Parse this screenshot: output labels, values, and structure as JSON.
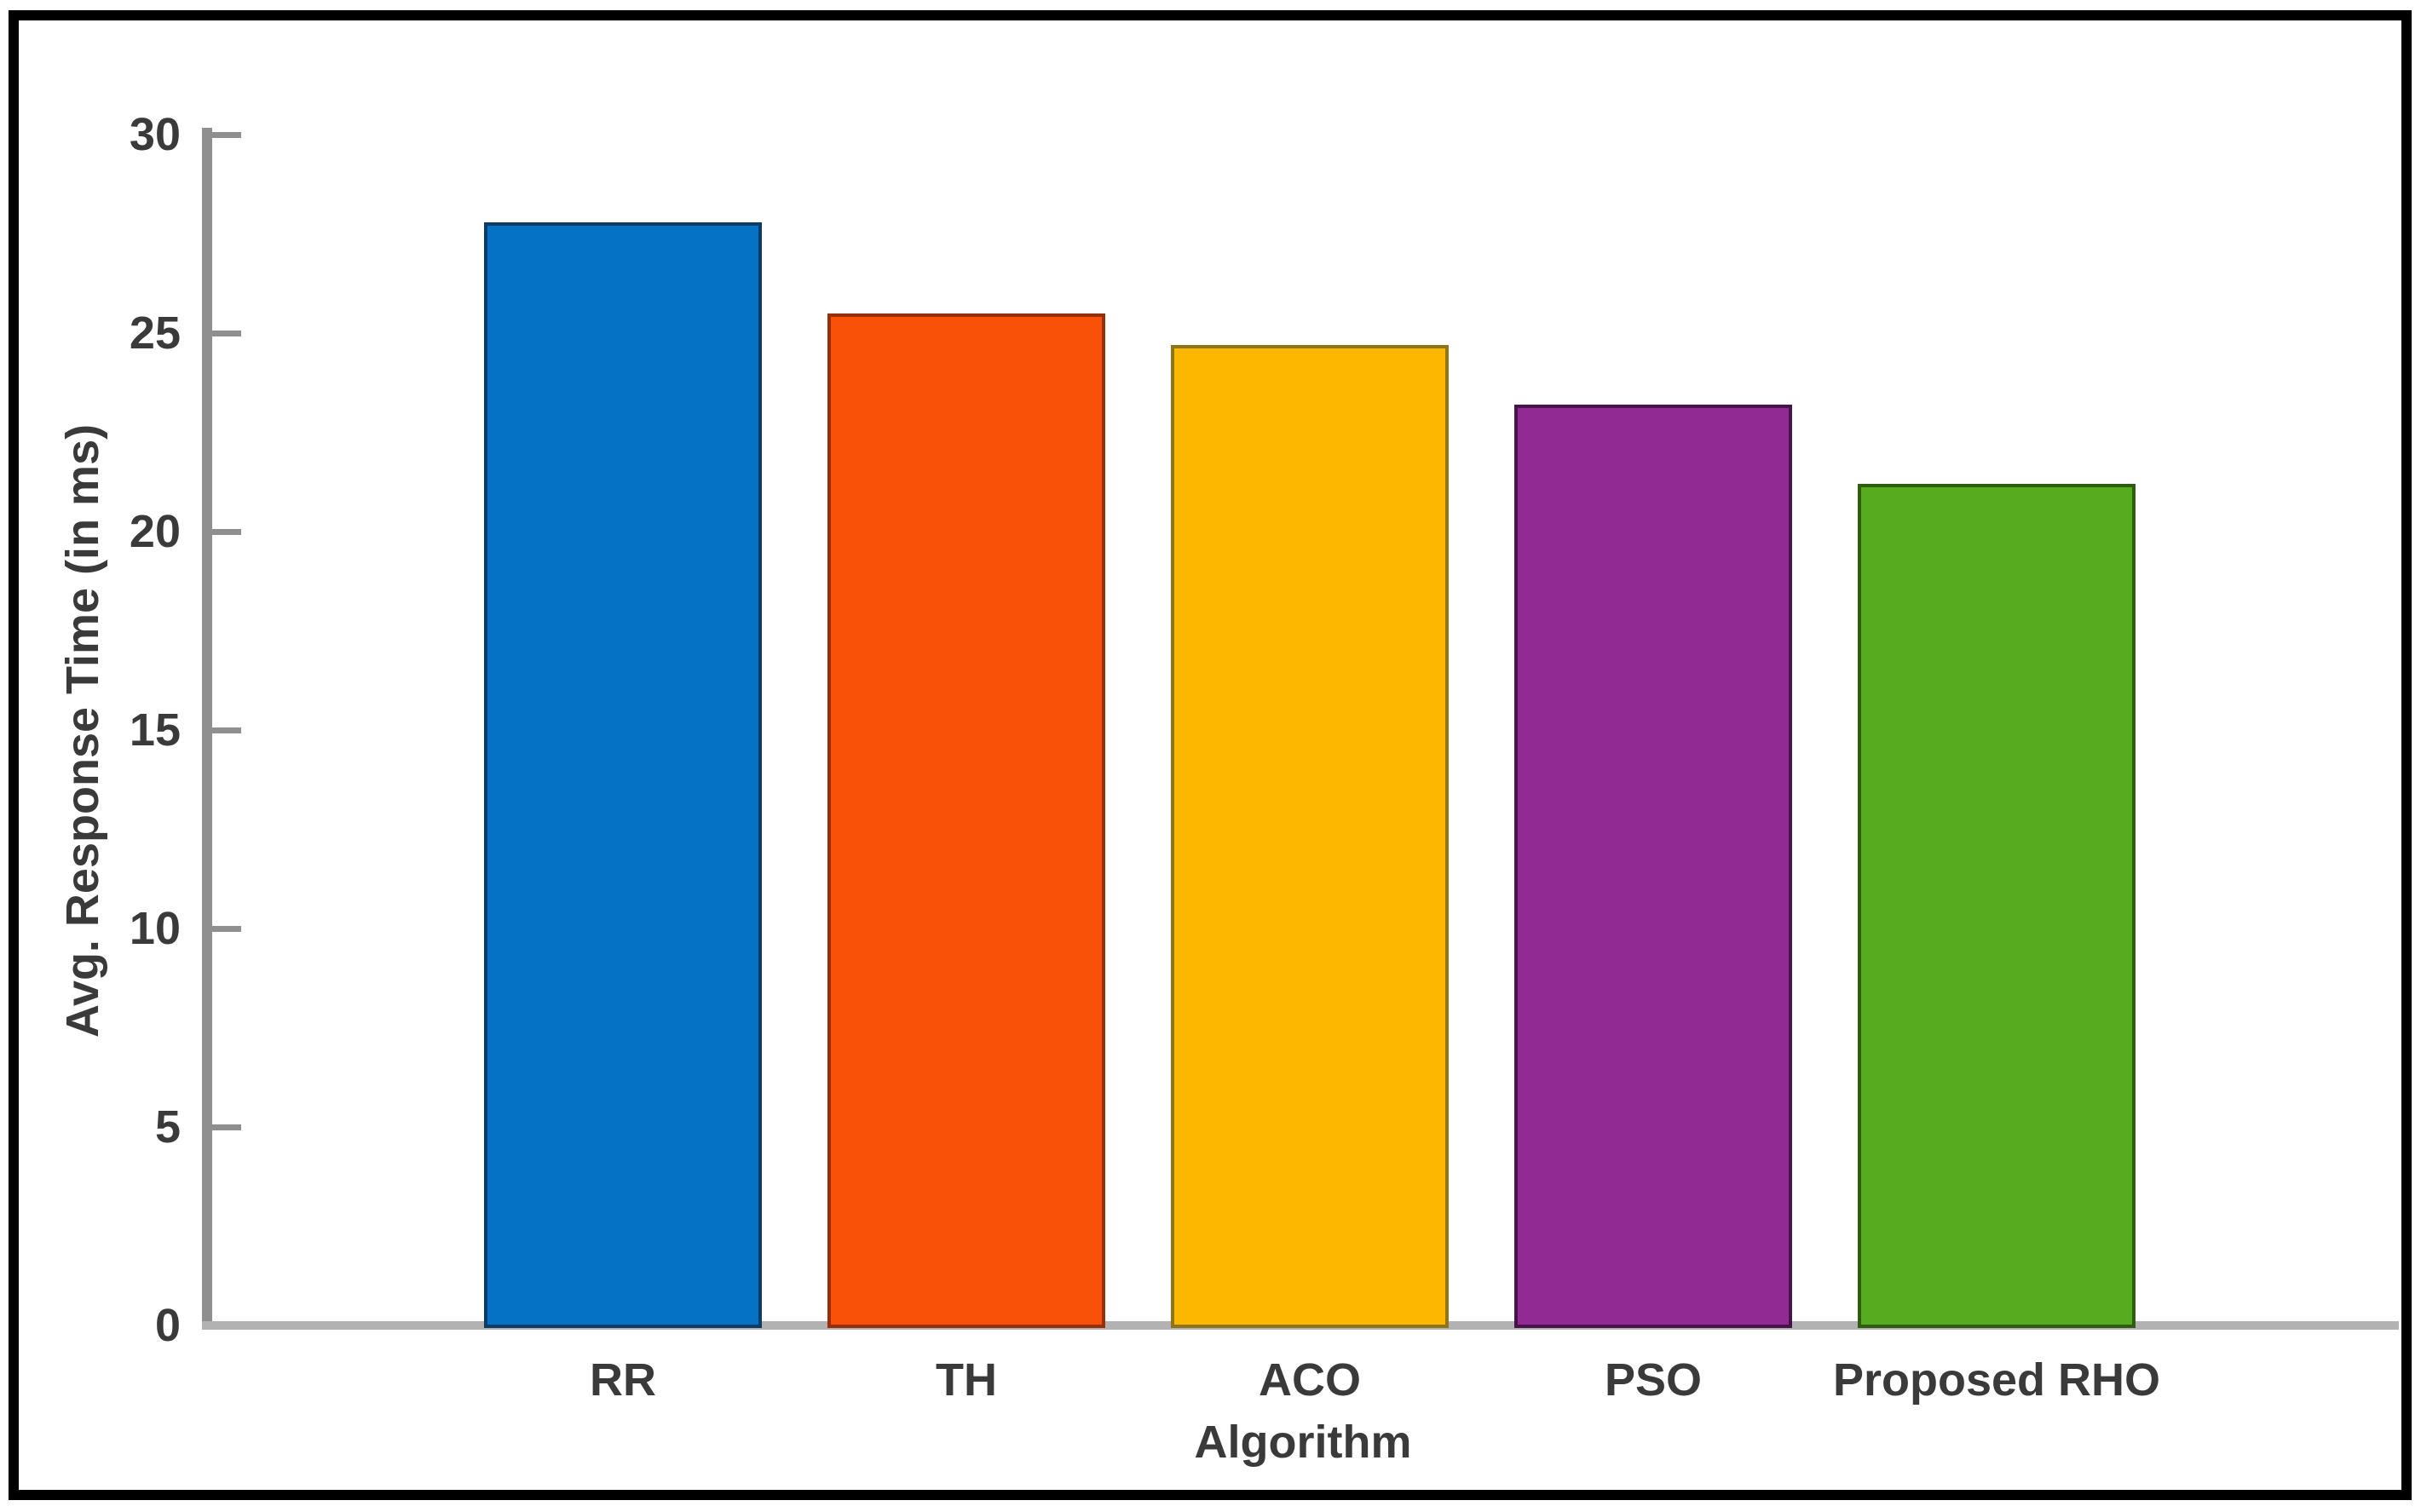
{
  "figure": {
    "background_color": "#ffffff",
    "frame_color": "#000000"
  },
  "chart_data": {
    "type": "bar",
    "title": "",
    "xlabel": "Algorithm",
    "ylabel": "Avg. Response Time (in ms)",
    "categories": [
      "RR",
      "TH",
      "ACO",
      "PSO",
      "Proposed RHO"
    ],
    "values": [
      27.8,
      25.5,
      24.7,
      23.2,
      21.2
    ],
    "bar_colors": [
      "#0572C6",
      "#F95108",
      "#FEB701",
      "#912A92",
      "#55AC1E"
    ],
    "bar_edge_colors": [
      "#0A3C66",
      "#97300A",
      "#8F7519",
      "#471449",
      "#2F5C0F"
    ],
    "ylim": [
      0,
      30
    ],
    "yticks": [
      0,
      5,
      10,
      15,
      20,
      25,
      30
    ],
    "grid": false,
    "legend": null,
    "axis_color": "#8f8f8f",
    "baseline_color": "#b2b2b2",
    "tick_label_color": "#3a3a3a"
  }
}
